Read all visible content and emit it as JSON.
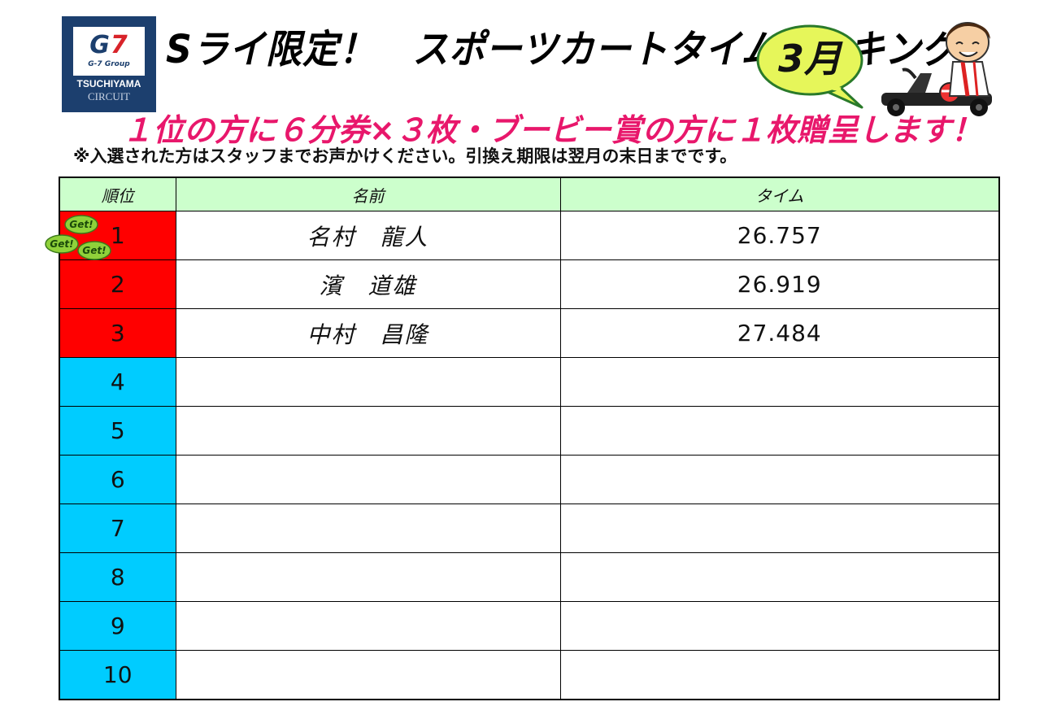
{
  "header": {
    "logo": {
      "brand": "G7",
      "group": "G-7 Group",
      "line1": "TSUCHIYAMA",
      "line2": "CIRCUIT"
    },
    "title": "Sライ限定！　スポーツカートタイムランキング",
    "month": "3月",
    "promo": "１位の方に６分券×３枚・ブービー賞の方に１枚贈呈します！",
    "notice": "※入選された方はスタッフまでお声かけください。引換え期限は翌月の末日までです。"
  },
  "colors": {
    "top3": "#ff0000",
    "others": "#00ccff",
    "header_bg": "#ccffcc",
    "promo": "#e8176b"
  },
  "badge": {
    "icon": "get-badge-icon",
    "text": "Get!"
  },
  "table": {
    "headers": {
      "rank": "順位",
      "name": "名前",
      "time": "タイム"
    },
    "rows": [
      {
        "rank": "1",
        "name": "名村　龍人",
        "time": "26.757"
      },
      {
        "rank": "2",
        "name": "濱　道雄",
        "time": "26.919"
      },
      {
        "rank": "3",
        "name": "中村　昌隆",
        "time": "27.484"
      },
      {
        "rank": "4",
        "name": "",
        "time": ""
      },
      {
        "rank": "5",
        "name": "",
        "time": ""
      },
      {
        "rank": "6",
        "name": "",
        "time": ""
      },
      {
        "rank": "7",
        "name": "",
        "time": ""
      },
      {
        "rank": "8",
        "name": "",
        "time": ""
      },
      {
        "rank": "9",
        "name": "",
        "time": ""
      },
      {
        "rank": "10",
        "name": "",
        "time": ""
      }
    ]
  }
}
